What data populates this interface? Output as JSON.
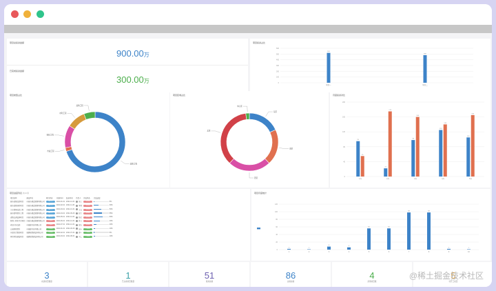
{
  "window": {
    "controls": [
      {
        "name": "close-dot",
        "color": "#e8585b"
      },
      {
        "name": "minimize-dot",
        "color": "#f0b13b"
      },
      {
        "name": "maximize-dot",
        "color": "#2fc48b"
      }
    ]
  },
  "totals": {
    "top": {
      "label": "项目总投资金额",
      "value": "900.00",
      "unit": "万",
      "color": "#3d83c8"
    },
    "bottom": {
      "label": "已完成投资金额",
      "value": "300.00",
      "unit": "万",
      "color": "#4cae4c"
    }
  },
  "colors": {
    "blue": "#3d83c8",
    "orange": "#e0704f",
    "pink": "#d94fa6",
    "red": "#d14148",
    "gold": "#d69a3c",
    "green": "#4cae4c",
    "purple": "#6c5fb0",
    "teal": "#3aa0a8"
  },
  "panels": {
    "top_bar": {
      "title": "项目投资占比"
    },
    "donut1": {
      "title": "项目类型占比"
    },
    "donut2": {
      "title": "项目区域占比"
    },
    "group_bar": {
      "title": "月度投资对比"
    },
    "table": {
      "title": "项目进度列表",
      "subtitle": "共10条"
    },
    "bottom_bar": {
      "title": "项目月度统计"
    }
  },
  "chart_data": [
    {
      "type": "bar",
      "categories": [
        "项目一",
        "项目二"
      ],
      "values": [
        520,
        480
      ],
      "ylim": [
        0,
        600
      ],
      "yticks": [
        0,
        100,
        200,
        300,
        400,
        500,
        600
      ]
    },
    {
      "type": "pie",
      "labels": [
        "道路工程",
        "市政工程",
        "绿化工程",
        "水利工程",
        "其他工程"
      ],
      "values": [
        70,
        2,
        12,
        10,
        6
      ],
      "colors": [
        "#3d83c8",
        "#e0704f",
        "#d94fa6",
        "#d69a3c",
        "#4cae4c"
      ]
    },
    {
      "type": "pie",
      "labels": [
        "东区",
        "南区",
        "西区",
        "北区",
        "中心区"
      ],
      "values": [
        18,
        20,
        24,
        36,
        2
      ],
      "colors": [
        "#3d83c8",
        "#e0704f",
        "#d94fa6",
        "#d14148",
        "#4cae4c"
      ]
    },
    {
      "type": "bar",
      "categories": [
        "1月",
        "2月",
        "3月",
        "4月",
        "5月"
      ],
      "series": [
        {
          "values": [
            95,
            22,
            98,
            125,
            105
          ],
          "color": "#3d83c8"
        },
        {
          "values": [
            55,
            175,
            160,
            140,
            165
          ],
          "color": "#e0704f"
        }
      ],
      "ylim": [
        0,
        200
      ],
      "yticks": [
        0,
        40,
        80,
        120,
        160,
        200
      ]
    },
    {
      "type": "bar",
      "categories": [
        "1",
        "2",
        "3",
        "4",
        "5",
        "6",
        "7",
        "8",
        "9",
        "10"
      ],
      "values": [
        2,
        1,
        8,
        6,
        56,
        56,
        98,
        98,
        2,
        1
      ],
      "ylim": [
        0,
        120
      ],
      "yticks": [
        0,
        20,
        40,
        60,
        80,
        100,
        120
      ]
    }
  ],
  "table": {
    "columns": [
      "项目名称",
      "建设单位",
      "项目状态",
      "开始时间",
      "结束时间",
      "负责人",
      "完成状态",
      "完成进度"
    ],
    "rows": [
      {
        "name": "城市道路改造项目",
        "org": "市城市建设管理有限公司",
        "status": "进行中",
        "status_color": "#5fa8d8",
        "start": "2021-01-01",
        "end": "2021-12-31",
        "owner": "张三",
        "done": "未完成",
        "done_color": "#e8898b",
        "pct": 0.05,
        "pct_text": "5%"
      },
      {
        "name": "城市道路绿化项目",
        "org": "市城市建设管理有限公司",
        "status": "进行中",
        "status_color": "#5fa8d8",
        "start": "2021-02-01",
        "end": "2021-11-30",
        "owner": "李四",
        "done": "未完成",
        "done_color": "#e8898b",
        "pct": 0.3,
        "pct_text": "30%"
      },
      {
        "name": "污水管网改造工程",
        "org": "市城市建设管理有限公司",
        "status": "进行中",
        "status_color": "#5fa8d8",
        "start": "2021-03-01",
        "end": "2021-10-31",
        "owner": "王五",
        "done": "未完成",
        "done_color": "#e8898b",
        "pct": 0.5,
        "pct_text": "50%"
      },
      {
        "name": "城市照明提升工程",
        "org": "市城市建设管理有限公司",
        "status": "进行中",
        "status_color": "#5fa8d8",
        "start": "2021-04-01",
        "end": "2021-09-30",
        "owner": "赵六",
        "done": "未完成",
        "done_color": "#e8898b",
        "pct": 0.55,
        "pct_text": "55%"
      },
      {
        "name": "道路交通设施项目",
        "org": "市城市建设管理有限公司",
        "status": "进行中",
        "status_color": "#5fa8d8",
        "start": "2021-05-01",
        "end": "2021-12-31",
        "owner": "钱七",
        "done": "未完成",
        "done_color": "#e8898b",
        "pct": 0.6,
        "pct_text": "60%"
      },
      {
        "name": "智慧一体化平台项目",
        "org": "市城市建设管理有限公司",
        "status": "已延期",
        "status_color": "#e8898b",
        "start": "2021-06-01",
        "end": "2021-12-31",
        "owner": "孙八",
        "done": "未完成",
        "done_color": "#e8898b",
        "pct": 0.4,
        "pct_text": "40%"
      },
      {
        "name": "老旧小区改造",
        "org": "市城建开发有限公司",
        "status": "已延期",
        "status_color": "#e8898b",
        "start": "2021-07-01",
        "end": "2021-12-31",
        "owner": "周九",
        "done": "未完成",
        "done_color": "#e8898b",
        "pct": 0.2,
        "pct_text": "20%"
      },
      {
        "name": "公园景观提升",
        "org": "市城建开发有限公司",
        "status": "已完成",
        "status_color": "#6cbf6c",
        "start": "2021-01-01",
        "end": "2021-06-30",
        "owner": "吴十",
        "done": "已完成",
        "done_color": "#6cbf6c",
        "pct": 0.1,
        "pct_text": "10%"
      },
      {
        "name": "河道综合整治项目",
        "org": "城建规划建设有限公司",
        "status": "已完成",
        "status_color": "#6cbf6c",
        "start": "2021-02-01",
        "end": "2021-07-31",
        "owner": "郑一",
        "done": "已完成",
        "done_color": "#6cbf6c",
        "pct": 0.05,
        "pct_text": "5%"
      },
      {
        "name": "体育场馆建设项目",
        "org": "城建规划建设有限公司",
        "status": "已完成",
        "status_color": "#6cbf6c",
        "start": "2021-03-01",
        "end": "2021-08-31",
        "owner": "冯二",
        "done": "已完成",
        "done_color": "#6cbf6c",
        "pct": 0.1,
        "pct_text": "10%"
      }
    ]
  },
  "stats": [
    {
      "value": "3",
      "label": "在建项目数量",
      "color": "#3d83c8"
    },
    {
      "value": "1",
      "label": "已完成项目数量",
      "color": "#3aa0a8"
    },
    {
      "value": "51",
      "label": "投资总额",
      "color": "#6c5fb0"
    },
    {
      "value": "86",
      "label": "完成总额",
      "color": "#3d83c8"
    },
    {
      "value": "4",
      "label": "延期项目数",
      "color": "#4cae4c"
    },
    {
      "value": "5",
      "label": "待开工项目",
      "color": "#d69a3c"
    }
  ],
  "watermark": "@稀土掘金技术社区"
}
